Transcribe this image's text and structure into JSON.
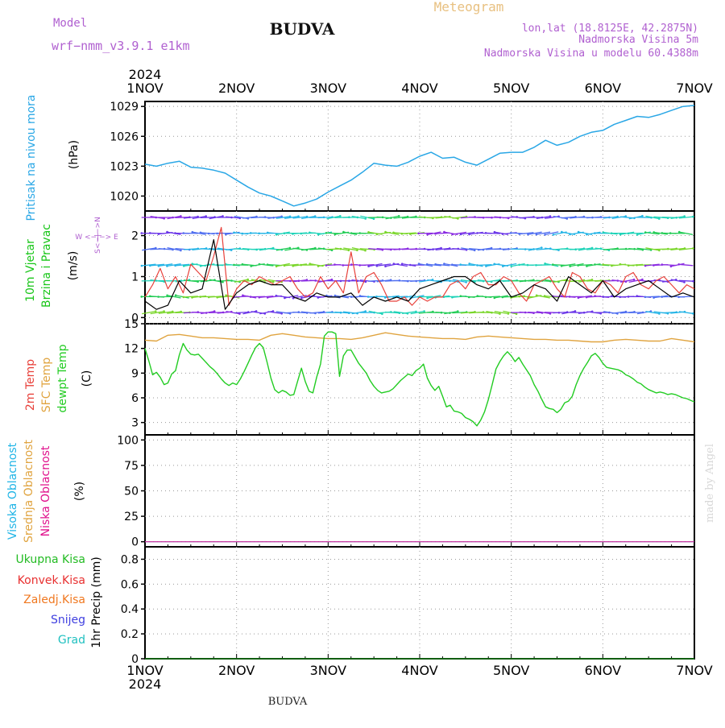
{
  "header": {
    "model_label": "Model",
    "model_name": "wrf−nmm_v3.9.1  e1km",
    "station": "BUDVA",
    "meteogram_label": "Meteogram",
    "coords": "lon,lat (18.8125E, 42.2875N)",
    "altitude": "Nadmorska Visina 5m",
    "model_altitude": "Nadmorska Visina u modelu 60.4388m"
  },
  "footer": {
    "station": "BUDVA",
    "made_by": "made by Angel"
  },
  "colors": {
    "pressure": "#2aa7e6",
    "wind_green": "#19c619",
    "wind_purple": "#8a2be2",
    "temp2m": "#e8413b",
    "sfc": "#e0a440",
    "dewpt": "#22cc22",
    "high_cloud": "#1fb4e6",
    "mid_cloud": "#e0a440",
    "low_cloud": "#e0108c",
    "total_precip": "#22bb22",
    "conv_precip": "#e83030",
    "frz_precip": "#f07820",
    "snow": "#4040e0",
    "hail": "#20c0c0",
    "model_text": "#b060d0",
    "meteogram_text": "#e8c080"
  },
  "chart_data": [
    {
      "type": "line",
      "panel": "pressure",
      "ylabel": "Pritisak na nivou mora",
      "unit": "(hPa)",
      "x_ticks": [
        "1NOV",
        "2NOV",
        "3NOV",
        "4NOV",
        "5NOV",
        "6NOV",
        "7NOV"
      ],
      "x_year": "2024",
      "y_ticks": [
        1020,
        1023,
        1026,
        1029
      ],
      "ylim": [
        1018.5,
        1029.5
      ],
      "xlim": [
        0,
        144
      ],
      "grid": true,
      "series": [
        {
          "x": [
            0,
            3,
            6,
            9,
            12,
            15,
            18,
            21,
            24,
            27,
            30,
            33,
            36,
            39,
            42,
            45,
            48,
            51,
            54,
            57,
            60,
            63,
            66,
            69,
            72,
            75,
            78,
            81,
            84,
            87,
            90,
            93,
            96,
            99,
            102,
            105,
            108,
            111,
            114,
            117,
            120,
            123,
            126,
            129,
            132,
            135,
            138,
            141,
            144
          ],
          "values": [
            1023.2,
            1023.0,
            1023.3,
            1023.5,
            1022.9,
            1022.8,
            1022.6,
            1022.3,
            1021.6,
            1020.9,
            1020.3,
            1020.0,
            1019.5,
            1019.0,
            1019.3,
            1019.7,
            1020.4,
            1021.0,
            1021.6,
            1022.4,
            1023.3,
            1023.1,
            1023.0,
            1023.4,
            1024.0,
            1024.4,
            1023.8,
            1023.9,
            1023.4,
            1023.1,
            1023.7,
            1024.3,
            1024.4,
            1024.4,
            1024.9,
            1025.6,
            1025.1,
            1025.4,
            1026.0,
            1026.4,
            1026.6,
            1027.2,
            1027.6,
            1028.0,
            1027.9,
            1028.2,
            1028.6,
            1029.0,
            1029.1
          ]
        }
      ]
    },
    {
      "type": "line",
      "panel": "wind",
      "ylabel": "10m Vjetar Brzina i Pravac",
      "unit": "(m/s)",
      "compass": "W <−|−> E",
      "compass_ns": "S<−|−>N",
      "y_ticks": [
        0,
        1,
        2
      ],
      "ylim": [
        -0.15,
        2.6
      ],
      "xlim": [
        0,
        144
      ],
      "grid": true,
      "series": [
        {
          "x": [
            0,
            2,
            4,
            6,
            8,
            10,
            12,
            14,
            16,
            18,
            20,
            22,
            24,
            26,
            28,
            30,
            32,
            34,
            36,
            38,
            40,
            42,
            44,
            46,
            48,
            50,
            52,
            54,
            56,
            58,
            60,
            62,
            64,
            66,
            68,
            70,
            72,
            74,
            76,
            78,
            80,
            82,
            84,
            86,
            88,
            90,
            92,
            94,
            96,
            98,
            100,
            102,
            104,
            106,
            108,
            110,
            112,
            114,
            116,
            118,
            120,
            122,
            124,
            126,
            128,
            130,
            132,
            134,
            136,
            138,
            140,
            142,
            144
          ],
          "values": [
            0.5,
            0.8,
            1.2,
            0.7,
            1.0,
            0.6,
            1.3,
            1.1,
            0.9,
            1.5,
            2.2,
            0.3,
            0.7,
            0.9,
            0.8,
            1.0,
            0.9,
            0.8,
            0.9,
            1.0,
            0.7,
            0.5,
            0.6,
            1.0,
            0.7,
            0.9,
            0.6,
            1.6,
            0.6,
            1.0,
            1.1,
            0.8,
            0.4,
            0.4,
            0.5,
            0.3,
            0.5,
            0.4,
            0.5,
            0.5,
            0.8,
            0.9,
            0.7,
            1.0,
            1.1,
            0.8,
            0.8,
            1.0,
            0.9,
            0.6,
            0.4,
            0.8,
            0.9,
            1.0,
            0.7,
            0.5,
            1.1,
            1.0,
            0.7,
            0.6,
            0.9,
            0.8,
            0.6,
            1.0,
            1.1,
            0.8,
            0.7,
            0.9,
            1.0,
            0.8,
            0.6,
            0.8,
            0.7
          ]
        },
        {
          "x": [
            0,
            3,
            6,
            9,
            12,
            15,
            18,
            21,
            24,
            27,
            30,
            33,
            36,
            39,
            42,
            45,
            48,
            51,
            54,
            57,
            60,
            63,
            66,
            69,
            72,
            75,
            78,
            81,
            84,
            87,
            90,
            93,
            96,
            99,
            102,
            105,
            108,
            111,
            114,
            117,
            120,
            123,
            126,
            129,
            132,
            135,
            138,
            141,
            144
          ],
          "values": [
            0.4,
            0.2,
            0.3,
            0.9,
            0.6,
            0.7,
            1.9,
            0.2,
            0.6,
            0.8,
            0.9,
            0.8,
            0.8,
            0.5,
            0.4,
            0.6,
            0.5,
            0.5,
            0.6,
            0.3,
            0.5,
            0.4,
            0.5,
            0.4,
            0.7,
            0.8,
            0.9,
            1.0,
            1.0,
            0.8,
            0.7,
            0.9,
            0.5,
            0.6,
            0.8,
            0.7,
            0.4,
            1.0,
            0.8,
            0.6,
            0.9,
            0.5,
            0.7,
            0.8,
            0.9,
            0.7,
            0.5,
            0.6,
            0.5
          ]
        }
      ]
    },
    {
      "type": "line",
      "panel": "temperature",
      "labels": [
        "2m Temp",
        "SFC Temp",
        "dewpt Temp"
      ],
      "unit": "(C)",
      "y_ticks": [
        3,
        6,
        9,
        12,
        15
      ],
      "ylim": [
        1.5,
        15
      ],
      "xlim": [
        0,
        144
      ],
      "grid": true,
      "series": [
        {
          "name": "SFC Temp",
          "x": [
            0,
            3,
            6,
            9,
            12,
            15,
            18,
            21,
            24,
            27,
            30,
            33,
            36,
            39,
            42,
            45,
            48,
            51,
            54,
            57,
            60,
            63,
            66,
            69,
            72,
            75,
            78,
            81,
            84,
            87,
            90,
            93,
            96,
            99,
            102,
            105,
            108,
            111,
            114,
            117,
            120,
            123,
            126,
            129,
            132,
            135,
            138,
            141,
            144
          ],
          "values": [
            13.0,
            12.9,
            13.6,
            13.7,
            13.5,
            13.3,
            13.3,
            13.2,
            13.1,
            13.1,
            13.0,
            13.6,
            13.8,
            13.6,
            13.4,
            13.3,
            13.2,
            13.2,
            13.1,
            13.3,
            13.6,
            13.9,
            13.7,
            13.5,
            13.4,
            13.3,
            13.2,
            13.2,
            13.1,
            13.4,
            13.5,
            13.4,
            13.3,
            13.2,
            13.1,
            13.1,
            13.0,
            13.0,
            12.9,
            12.8,
            12.8,
            13.0,
            13.1,
            13.0,
            12.9,
            12.9,
            13.2,
            13.0,
            12.8
          ]
        },
        {
          "name": "dewpt Temp",
          "x": [
            0,
            1,
            2,
            3,
            4,
            5,
            6,
            7,
            8,
            9,
            10,
            11,
            12,
            13,
            14,
            15,
            16,
            17,
            18,
            19,
            20,
            21,
            22,
            23,
            24,
            25,
            26,
            27,
            28,
            29,
            30,
            31,
            32,
            33,
            34,
            35,
            36,
            37,
            38,
            39,
            40,
            41,
            42,
            43,
            44,
            45,
            46,
            47,
            48,
            49,
            50,
            51,
            52,
            53,
            54,
            55,
            56,
            57,
            58,
            59,
            60,
            61,
            62,
            63,
            64,
            65,
            66,
            67,
            68,
            69,
            70,
            71,
            72,
            73,
            74,
            75,
            76,
            77,
            78,
            79,
            80,
            81,
            82,
            83,
            84,
            85,
            86,
            87,
            88,
            89,
            90,
            91,
            92,
            93,
            94,
            95,
            96,
            97,
            98,
            99,
            100,
            101,
            102,
            103,
            104,
            105,
            106,
            107,
            108,
            109,
            110,
            111,
            112,
            113,
            114,
            115,
            116,
            117,
            118,
            119,
            120,
            121,
            122,
            123,
            124,
            125,
            126,
            127,
            128,
            129,
            130,
            131,
            132,
            133,
            134,
            135,
            136,
            137,
            138,
            139,
            140,
            141,
            142,
            143,
            144
          ],
          "values": [
            12.0,
            10.5,
            8.8,
            9.1,
            8.5,
            7.6,
            7.8,
            8.9,
            9.3,
            11.2,
            12.6,
            11.8,
            11.3,
            11.2,
            11.3,
            10.8,
            10.3,
            9.8,
            9.4,
            8.9,
            8.3,
            7.8,
            7.5,
            7.8,
            7.6,
            8.3,
            9.2,
            10.2,
            11.2,
            12.1,
            12.6,
            12.1,
            10.3,
            8.4,
            7.0,
            6.6,
            6.9,
            6.7,
            6.3,
            6.4,
            8.0,
            9.6,
            8.0,
            6.8,
            6.6,
            8.5,
            10.1,
            13.5,
            14.0,
            14.0,
            13.8,
            8.6,
            11.1,
            11.8,
            11.8,
            11.0,
            10.2,
            9.6,
            9.0,
            8.1,
            7.4,
            6.9,
            6.6,
            6.7,
            6.8,
            7.1,
            7.6,
            8.1,
            8.5,
            8.9,
            8.7,
            9.3,
            9.6,
            10.1,
            8.4,
            7.5,
            6.9,
            7.4,
            6.2,
            4.9,
            5.1,
            4.4,
            4.3,
            4.1,
            3.6,
            3.4,
            3.1,
            2.6,
            3.3,
            4.3,
            5.8,
            7.6,
            9.5,
            10.4,
            11.1,
            11.6,
            11.1,
            10.4,
            10.9,
            10.1,
            9.4,
            8.7,
            7.6,
            6.8,
            5.8,
            4.9,
            4.7,
            4.6,
            4.2,
            4.6,
            5.4,
            5.6,
            6.2,
            7.6,
            8.7,
            9.6,
            10.3,
            11.1,
            11.4,
            10.9,
            10.2,
            9.7,
            9.6,
            9.5,
            9.4,
            9.2,
            8.8,
            8.6,
            8.3,
            7.9,
            7.7,
            7.3,
            7.0,
            6.8,
            6.6,
            6.7,
            6.6,
            6.4,
            6.5,
            6.4,
            6.2,
            6.0,
            5.9,
            5.7,
            5.5
          ]
        }
      ]
    },
    {
      "type": "line",
      "panel": "cloud",
      "labels": [
        "Visoka Oblacnost",
        "Srednja Oblacnost",
        "Niska Oblacnost"
      ],
      "unit": "(%)",
      "y_ticks": [
        0,
        25,
        50,
        75,
        100
      ],
      "ylim": [
        -5,
        105
      ],
      "xlim": [
        0,
        144
      ],
      "grid": true,
      "series": [
        {
          "name": "Visoka Oblacnost",
          "x": [
            0,
            144
          ],
          "values": [
            0,
            0
          ]
        },
        {
          "name": "Srednja Oblacnost",
          "x": [
            0,
            144
          ],
          "values": [
            0,
            0
          ]
        },
        {
          "name": "Niska Oblacnost",
          "x": [
            0,
            144
          ],
          "values": [
            0,
            0
          ]
        }
      ]
    },
    {
      "type": "line",
      "panel": "precipitation",
      "labels": [
        "Ukupna Kisa",
        "Konvek.Kisa",
        "Zaledj.Kisa",
        "Snijeg",
        "Grad"
      ],
      "unit": "1hr Precip (mm)",
      "y_ticks": [
        0,
        0.2,
        0.4,
        0.6,
        0.8
      ],
      "y_tick_labels": [
        "0",
        "0.2",
        "0.4",
        "0.6",
        "0.8"
      ],
      "ylim": [
        0,
        0.9
      ],
      "xlim": [
        0,
        144
      ],
      "grid": true,
      "x_ticks": [
        "1NOV",
        "2NOV",
        "3NOV",
        "4NOV",
        "5NOV",
        "6NOV",
        "7NOV"
      ],
      "x_year": "2024",
      "series": [
        {
          "name": "Ukupna Kisa",
          "x": [
            0,
            144
          ],
          "values": [
            0,
            0
          ]
        }
      ]
    }
  ]
}
